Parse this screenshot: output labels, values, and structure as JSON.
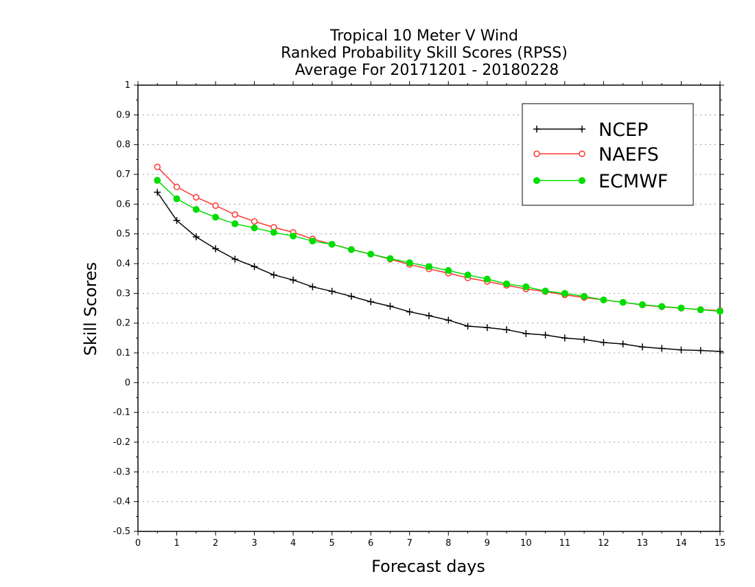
{
  "chart_data": {
    "type": "line",
    "title_lines": [
      "Tropical 10 Meter V Wind",
      "Ranked Probability Skill Scores (RPSS)",
      "Average For 20171201 - 20180228"
    ],
    "xlabel": "Forecast days",
    "ylabel": "Skill Scores",
    "xlim": [
      0,
      15
    ],
    "ylim": [
      -0.5,
      1
    ],
    "xticks": [
      "0",
      "1",
      "2",
      "3",
      "4",
      "5",
      "6",
      "7",
      "8",
      "9",
      "10",
      "11",
      "12",
      "13",
      "14",
      "15"
    ],
    "yticks": [
      "1",
      "0.9",
      "0.8",
      "0.7",
      "0.6",
      "0.5",
      "0.4",
      "0.3",
      "0.2",
      "0.1",
      "0",
      "-0.1",
      "-0.2",
      "-0.3",
      "-0.4",
      "-0.5"
    ],
    "grid": "horizontal dotted",
    "legend_position": "top-right",
    "x": [
      0.5,
      1,
      1.5,
      2,
      2.5,
      3,
      3.5,
      4,
      4.5,
      5,
      5.5,
      6,
      6.5,
      7,
      7.5,
      8,
      8.5,
      9,
      9.5,
      10,
      10.5,
      11,
      11.5,
      12,
      12.5,
      13,
      13.5,
      14,
      14.5,
      15
    ],
    "series": [
      {
        "name": "NCEP",
        "color": "#000000",
        "marker": "plus",
        "values": [
          0.64,
          0.545,
          0.49,
          0.45,
          0.415,
          0.39,
          0.362,
          0.345,
          0.322,
          0.307,
          0.29,
          0.272,
          0.257,
          0.238,
          0.225,
          0.21,
          0.19,
          0.185,
          0.178,
          0.165,
          0.16,
          0.15,
          0.145,
          0.135,
          0.13,
          0.12,
          0.115,
          0.11,
          0.108,
          0.105
        ]
      },
      {
        "name": "NAEFS",
        "color": "#ff3333",
        "marker": "open-circle",
        "values": [
          0.725,
          0.658,
          0.623,
          0.595,
          0.565,
          0.542,
          0.522,
          0.505,
          0.483,
          0.465,
          0.448,
          0.432,
          0.415,
          0.397,
          0.382,
          0.368,
          0.352,
          0.34,
          0.327,
          0.315,
          0.306,
          0.295,
          0.286,
          0.278,
          0.27,
          0.261,
          0.255,
          0.25,
          0.246,
          0.242
        ]
      },
      {
        "name": "ECMWF",
        "color": "#00dd00",
        "marker": "filled-circle",
        "values": [
          0.68,
          0.618,
          0.582,
          0.556,
          0.534,
          0.52,
          0.505,
          0.493,
          0.476,
          0.465,
          0.447,
          0.432,
          0.417,
          0.403,
          0.39,
          0.377,
          0.362,
          0.348,
          0.332,
          0.322,
          0.308,
          0.3,
          0.29,
          0.278,
          0.27,
          0.262,
          0.256,
          0.251,
          0.245,
          0.24
        ]
      }
    ]
  }
}
